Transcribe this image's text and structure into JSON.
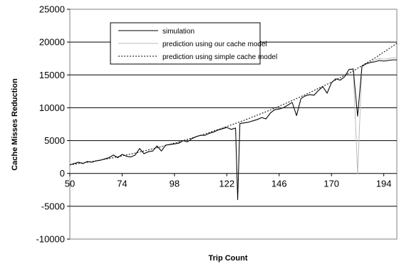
{
  "chart_data": {
    "type": "line",
    "xlabel": "Trip Count",
    "ylabel": "Cache Misses Reduction",
    "xlim": [
      50,
      200
    ],
    "ylim": [
      -10000,
      25000
    ],
    "x_ticks": [
      50,
      74,
      98,
      122,
      146,
      170,
      194
    ],
    "y_ticks": [
      -10000,
      -5000,
      0,
      5000,
      10000,
      15000,
      20000,
      25000
    ],
    "grid": "horizontal",
    "legend_position": "top-center",
    "series": [
      {
        "name": "simulation",
        "color": "#000000",
        "style": "solid",
        "x": [
          50,
          52,
          54,
          56,
          58,
          60,
          62,
          64,
          66,
          68,
          70,
          72,
          74,
          76,
          78,
          80,
          82,
          84,
          86,
          88,
          90,
          92,
          94,
          96,
          98,
          100,
          102,
          104,
          106,
          108,
          110,
          112,
          114,
          116,
          118,
          120,
          122,
          124,
          126,
          127,
          128,
          130,
          132,
          134,
          136,
          138,
          140,
          142,
          144,
          146,
          148,
          150,
          152,
          154,
          156,
          158,
          160,
          162,
          164,
          166,
          168,
          170,
          172,
          174,
          176,
          178,
          180,
          182,
          184,
          186,
          188,
          190,
          191,
          192,
          194,
          196,
          198,
          200
        ],
        "y": [
          1300,
          1500,
          1700,
          1500,
          1800,
          1700,
          1900,
          2000,
          2200,
          2400,
          2800,
          2400,
          2900,
          2600,
          2500,
          2800,
          3800,
          3000,
          3300,
          3400,
          4200,
          3400,
          4300,
          4400,
          4500,
          4600,
          5000,
          4800,
          5300,
          5600,
          5800,
          5800,
          6100,
          6300,
          6600,
          6800,
          7000,
          6700,
          6900,
          -4000,
          7600,
          7700,
          7800,
          8000,
          8200,
          8500,
          8300,
          9200,
          9700,
          9800,
          10000,
          10400,
          10800,
          8800,
          11400,
          11800,
          12000,
          11900,
          12600,
          13200,
          12200,
          13800,
          14400,
          14200,
          14700,
          15800,
          15900,
          8700,
          16300,
          16700,
          16900,
          17000,
          17100,
          17200,
          17100,
          17200,
          17300,
          17300
        ]
      },
      {
        "name": "prediction using our cache model",
        "color": "#bbbbbb",
        "style": "solid",
        "x": [
          50,
          52,
          54,
          56,
          58,
          60,
          62,
          64,
          66,
          68,
          70,
          72,
          74,
          76,
          78,
          80,
          82,
          84,
          86,
          88,
          90,
          92,
          94,
          96,
          98,
          100,
          102,
          104,
          106,
          108,
          110,
          112,
          114,
          116,
          118,
          120,
          122,
          124,
          126,
          127,
          128,
          130,
          132,
          134,
          136,
          138,
          140,
          142,
          144,
          146,
          148,
          150,
          152,
          154,
          156,
          158,
          160,
          162,
          164,
          166,
          168,
          170,
          172,
          174,
          176,
          178,
          180,
          182,
          184,
          186,
          188,
          190,
          191,
          192,
          194,
          196,
          198,
          200
        ],
        "y": [
          1300,
          1550,
          1750,
          1550,
          1850,
          1750,
          1950,
          2050,
          2250,
          2450,
          2850,
          2450,
          2950,
          2650,
          2550,
          2850,
          3700,
          3050,
          3350,
          3450,
          4100,
          3450,
          4350,
          4450,
          4550,
          4650,
          5050,
          4850,
          5350,
          5650,
          5850,
          5850,
          6150,
          6350,
          6650,
          6850,
          7050,
          6750,
          6950,
          -3800,
          7650,
          7750,
          7850,
          8050,
          8250,
          8550,
          8350,
          9250,
          9750,
          9850,
          10050,
          10450,
          10850,
          8900,
          11450,
          11850,
          12050,
          11950,
          12650,
          13250,
          12300,
          13850,
          14450,
          14250,
          14750,
          15850,
          15950,
          -100,
          16400,
          16800,
          17000,
          17300,
          17400,
          17500,
          17400,
          17500,
          17600,
          17600
        ]
      },
      {
        "name": "prediction using simple cache model",
        "color": "#000000",
        "style": "dashed",
        "x": [
          50,
          60,
          70,
          80,
          90,
          100,
          110,
          120,
          130,
          140,
          150,
          160,
          170,
          180,
          190,
          200
        ],
        "y": [
          1300,
          1800,
          2400,
          3100,
          3900,
          4800,
          5800,
          6900,
          8100,
          9400,
          10800,
          12300,
          13900,
          15600,
          17600,
          19800
        ]
      }
    ]
  }
}
